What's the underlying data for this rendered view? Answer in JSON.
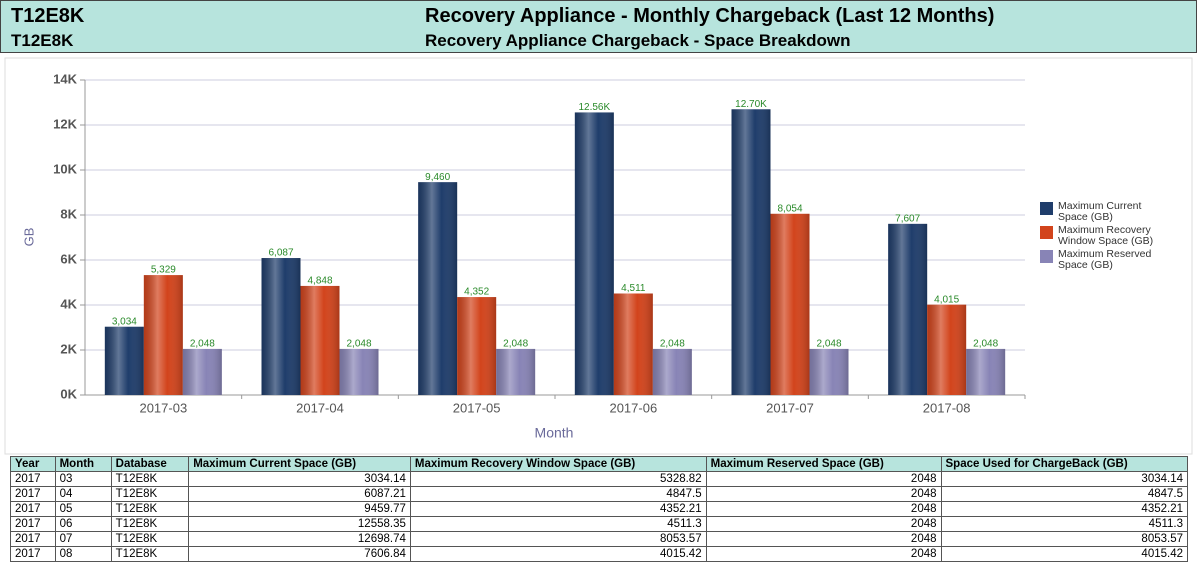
{
  "header": {
    "left1": "T12E8K",
    "left2": "T12E8K",
    "title": "Recovery Appliance - Monthly Chargeback (Last 12 Months)",
    "subtitle": "Recovery Appliance Chargeback - Space Breakdown"
  },
  "chart_data": {
    "type": "bar",
    "x_label": "Month",
    "y_label": "GB",
    "categories": [
      "2017-03",
      "2017-04",
      "2017-05",
      "2017-06",
      "2017-07",
      "2017-08"
    ],
    "series": [
      {
        "name": "Maximum Current Space (GB)",
        "color": "#1f3d6b",
        "values": [
          3034.14,
          6087.21,
          9459.77,
          12558.35,
          12698.74,
          7606.84
        ],
        "value_labels": [
          "3,034",
          "6,087",
          "9,460",
          "12.56K",
          "12.70K",
          "7,607"
        ]
      },
      {
        "name": "Maximum Recovery Window Space (GB)",
        "color": "#d2441c",
        "values": [
          5328.82,
          4847.5,
          4352.21,
          4511.3,
          8053.57,
          4015.42
        ],
        "value_labels": [
          "5,329",
          "4,848",
          "4,352",
          "4,511",
          "8,054",
          "4,015"
        ]
      },
      {
        "name": "Maximum Reserved Space (GB)",
        "color": "#8884b6",
        "values": [
          2048,
          2048,
          2048,
          2048,
          2048,
          2048
        ],
        "value_labels": [
          "2,048",
          "2,048",
          "2,048",
          "2,048",
          "2,048",
          "2,048"
        ]
      }
    ],
    "ylim": [
      0,
      14000
    ],
    "yticks": [
      {
        "value": 0,
        "label": "0K"
      },
      {
        "value": 2000,
        "label": "2K"
      },
      {
        "value": 4000,
        "label": "4K"
      },
      {
        "value": 6000,
        "label": "6K"
      },
      {
        "value": 8000,
        "label": "8K"
      },
      {
        "value": 10000,
        "label": "10K"
      },
      {
        "value": 12000,
        "label": "12K"
      },
      {
        "value": 14000,
        "label": "14K"
      }
    ],
    "grid": true,
    "legend": "right"
  },
  "table": {
    "header": [
      "Year",
      "Month",
      "Database",
      "Maximum Current Space (GB)",
      "Maximum Recovery Window Space (GB)",
      "Maximum Reserved Space (GB)",
      "Space Used for ChargeBack (GB)"
    ],
    "rows": [
      [
        "2017",
        "03",
        "T12E8K",
        "3034.14",
        "5328.82",
        "2048",
        "3034.14"
      ],
      [
        "2017",
        "04",
        "T12E8K",
        "6087.21",
        "4847.5",
        "2048",
        "4847.5"
      ],
      [
        "2017",
        "05",
        "T12E8K",
        "9459.77",
        "4352.21",
        "2048",
        "4352.21"
      ],
      [
        "2017",
        "06",
        "T12E8K",
        "12558.35",
        "4511.3",
        "2048",
        "4511.3"
      ],
      [
        "2017",
        "07",
        "T12E8K",
        "12698.74",
        "8053.57",
        "2048",
        "8053.57"
      ],
      [
        "2017",
        "08",
        "T12E8K",
        "7606.84",
        "4015.42",
        "2048",
        "4015.42"
      ]
    ]
  }
}
